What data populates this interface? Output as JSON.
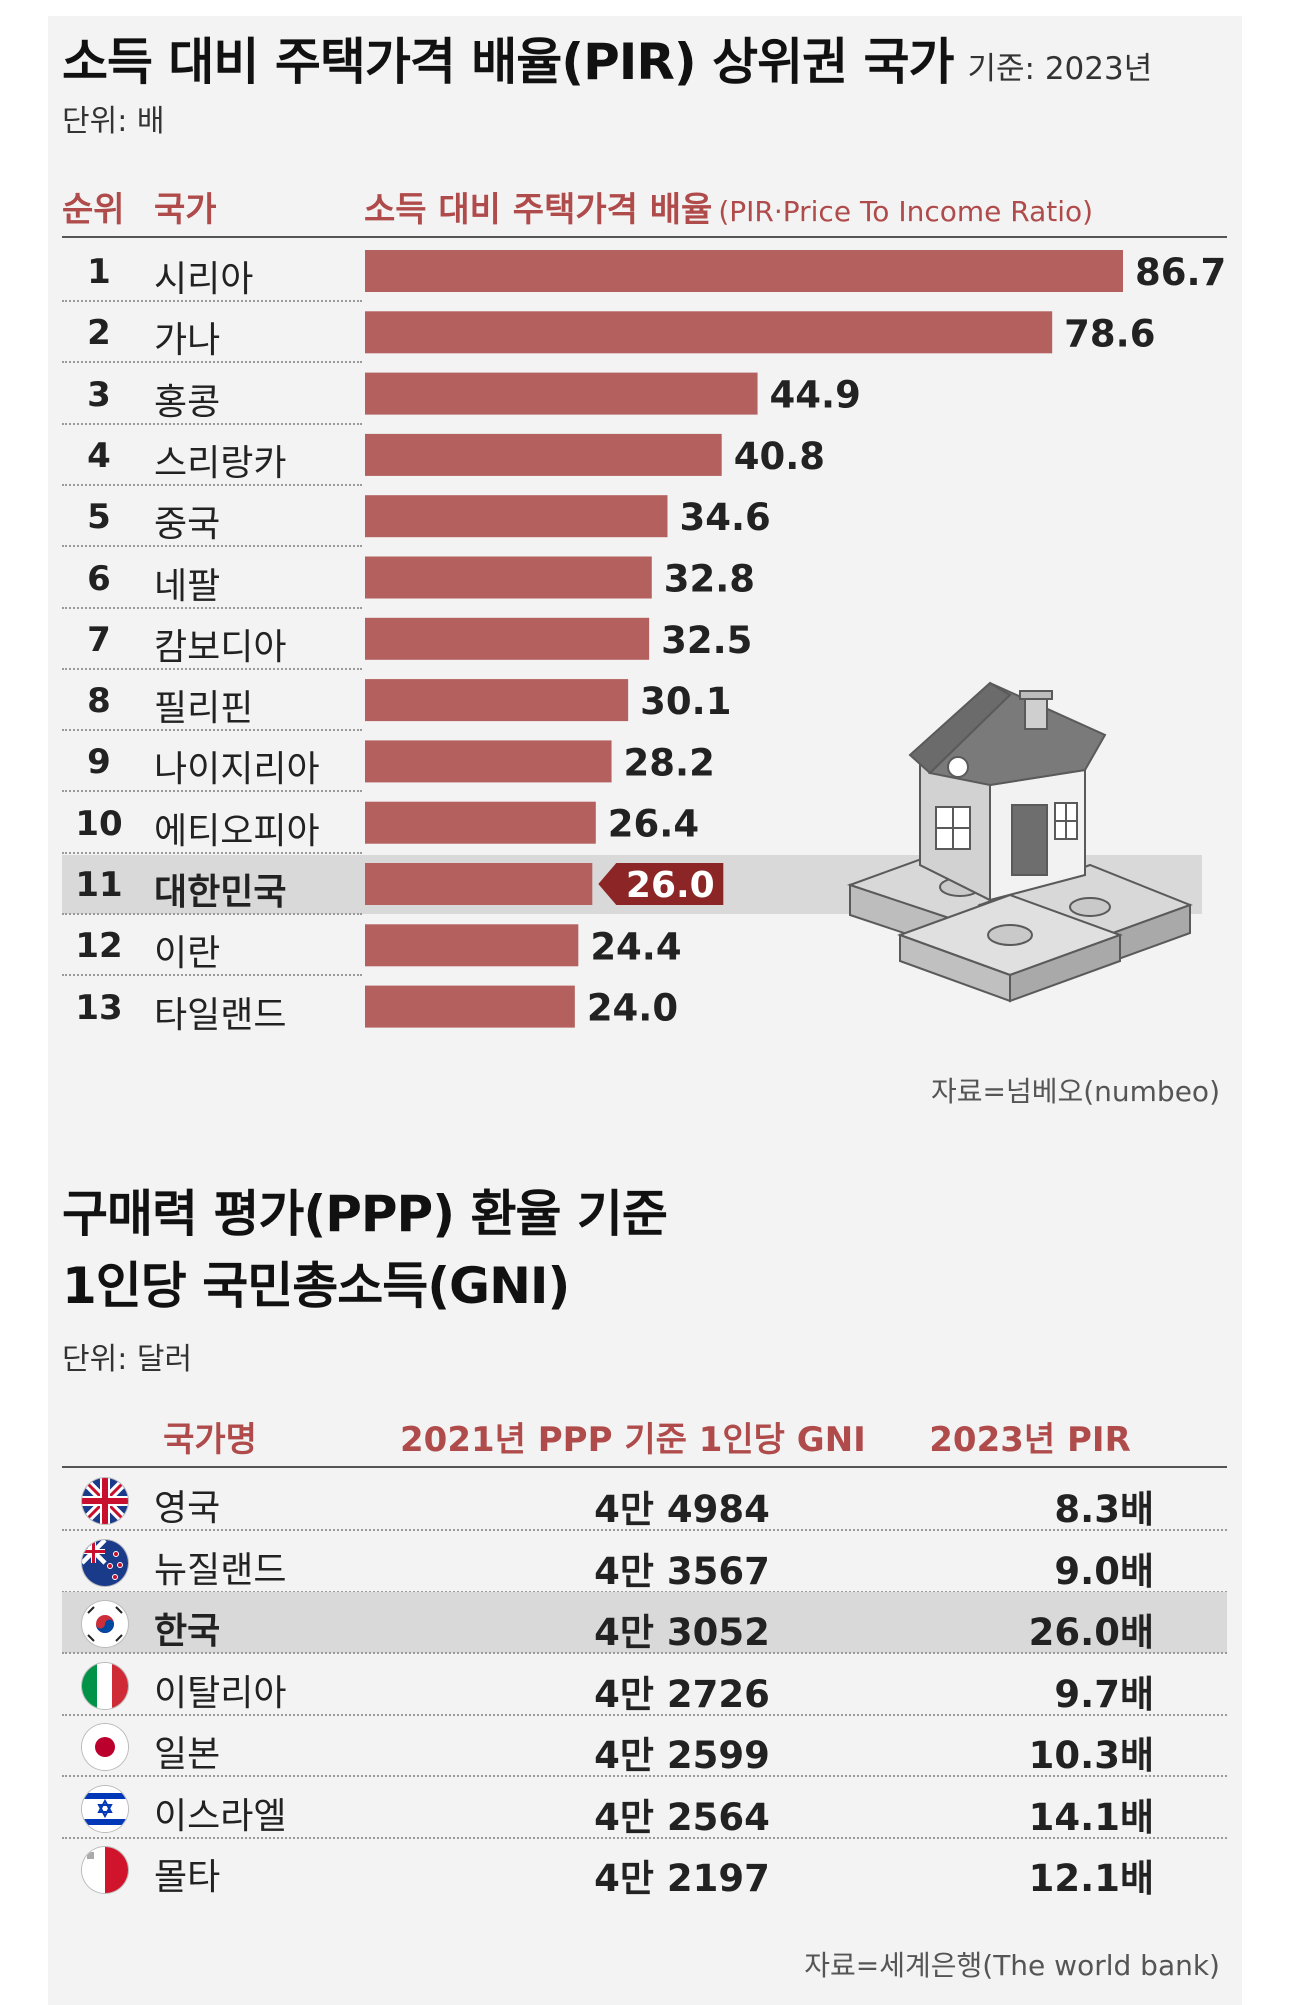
{
  "top": {
    "title": "소득 대비 주택가격 배율(PIR) 상위권 국가",
    "basis": "기준: 2023년",
    "unit": "단위: 배",
    "header_rank": "순위",
    "header_country": "국가",
    "header_metric": "소득 대비 주택가격 배율",
    "header_metric_sub": "(PIR·Price To Income Ratio)",
    "source": "자료=넘베오(numbeo)"
  },
  "chart_data": {
    "type": "bar",
    "title": "소득 대비 주택가격 배율(PIR) 상위권 국가",
    "ylabel": "소득 대비 주택가격 배율",
    "categories": [
      "시리아",
      "가나",
      "홍콩",
      "스리랑카",
      "중국",
      "네팔",
      "캄보디아",
      "필리핀",
      "나이지리아",
      "에티오피아",
      "대한민국",
      "이란",
      "타일랜드"
    ],
    "ranks": [
      "1",
      "2",
      "3",
      "4",
      "5",
      "6",
      "7",
      "8",
      "9",
      "10",
      "11",
      "12",
      "13"
    ],
    "values": [
      86.7,
      78.6,
      44.9,
      40.8,
      34.6,
      32.8,
      32.5,
      30.1,
      28.2,
      26.4,
      26.0,
      24.4,
      24.0
    ],
    "value_labels": [
      "86.7",
      "78.6",
      "44.9",
      "40.8",
      "34.6",
      "32.8",
      "32.5",
      "30.1",
      "28.2",
      "26.4",
      "26.0",
      "24.4",
      "24.0"
    ],
    "highlight": "대한민국",
    "xlim": [
      0,
      90
    ],
    "orientation": "horizontal",
    "colors": {
      "bar": "#b4605e",
      "highlight_label_bg": "#8c2626",
      "highlight_band": "#d9d9d9"
    }
  },
  "bottom": {
    "title_line1": "구매력 평가(PPP) 환율 기준",
    "title_line2": "1인당 국민총소득(GNI)",
    "unit": "단위: 달러",
    "col_country": "국가명",
    "col_gni": "2021년 PPP 기준 1인당 GNI",
    "col_pir": "2023년 PIR",
    "rows": [
      {
        "name": "영국",
        "gni": "4만 4984",
        "pir": "8.3배",
        "flag": "uk-flag-icon"
      },
      {
        "name": "뉴질랜드",
        "gni": "4만 3567",
        "pir": "9.0배",
        "flag": "new-zealand-flag-icon"
      },
      {
        "name": "한국",
        "gni": "4만 3052",
        "pir": "26.0배",
        "flag": "korea-flag-icon",
        "highlight": true
      },
      {
        "name": "이탈리아",
        "gni": "4만 2726",
        "pir": "9.7배",
        "flag": "italy-flag-icon"
      },
      {
        "name": "일본",
        "gni": "4만 2599",
        "pir": "10.3배",
        "flag": "japan-flag-icon"
      },
      {
        "name": "이스라엘",
        "gni": "4만 2564",
        "pir": "14.1배",
        "flag": "israel-flag-icon"
      },
      {
        "name": "몰타",
        "gni": "4만 2197",
        "pir": "12.1배",
        "flag": "malta-flag-icon"
      }
    ],
    "source": "자료=세계은행(The world bank)"
  }
}
